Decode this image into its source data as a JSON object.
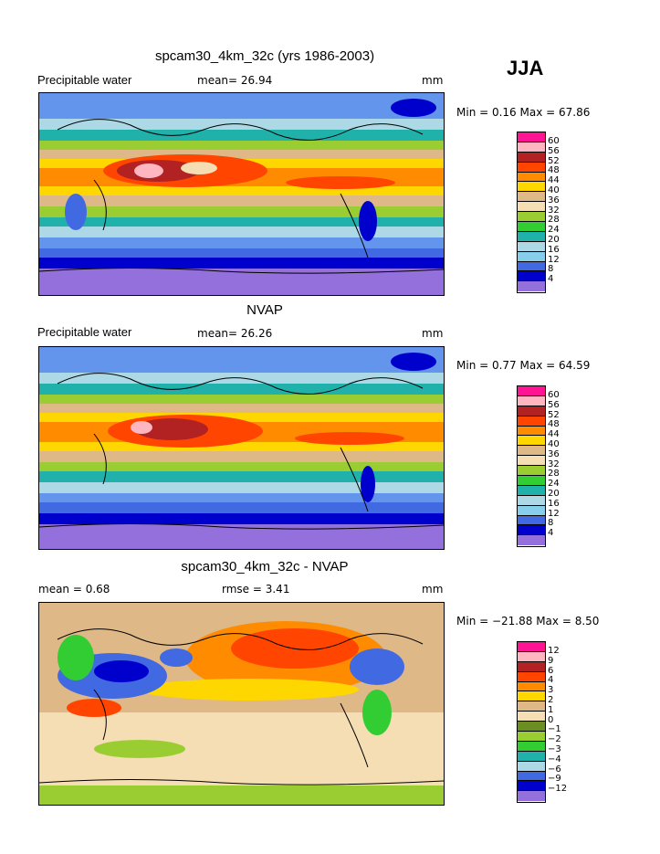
{
  "season": "JJA",
  "panels": [
    {
      "title": "spcam30_4km_32c (yrs 1986-2003)",
      "left_label": "Precipitable water",
      "mid_label": "mean=  26.94",
      "unit": "mm",
      "minmax": "Min =   0.16 Max =  67.86",
      "colorbar": {
        "colors": [
          "#ff1493",
          "#ffb6c1",
          "#b22222",
          "#ff4500",
          "#ff8c00",
          "#ffd700",
          "#deb887",
          "#f5deb3",
          "#9acd32",
          "#32cd32",
          "#20b2aa",
          "#add8e6",
          "#87ceeb",
          "#4169e1",
          "#0000cd",
          "#9370db"
        ],
        "labels": [
          "60",
          "56",
          "52",
          "48",
          "44",
          "40",
          "36",
          "32",
          "28",
          "24",
          "20",
          "16",
          "12",
          "8",
          "4"
        ]
      }
    },
    {
      "title": "NVAP",
      "left_label": "Precipitable water",
      "mid_label": "mean=  26.26",
      "unit": "mm",
      "minmax": "Min =   0.77 Max =  64.59",
      "colorbar": {
        "colors": [
          "#ff1493",
          "#ffb6c1",
          "#b22222",
          "#ff4500",
          "#ff8c00",
          "#ffd700",
          "#deb887",
          "#f5deb3",
          "#9acd32",
          "#32cd32",
          "#20b2aa",
          "#add8e6",
          "#87ceeb",
          "#4169e1",
          "#0000cd",
          "#9370db"
        ],
        "labels": [
          "60",
          "56",
          "52",
          "48",
          "44",
          "40",
          "36",
          "32",
          "28",
          "24",
          "20",
          "16",
          "12",
          "8",
          "4"
        ]
      }
    },
    {
      "title": "spcam30_4km_32c - NVAP",
      "left_label": "mean =    0.68",
      "mid_label": "rmse =    3.41",
      "unit": "mm",
      "minmax": "Min = −21.88 Max =   8.50",
      "colorbar": {
        "colors": [
          "#ff1493",
          "#ffb6c1",
          "#b22222",
          "#ff4500",
          "#ff8c00",
          "#ffd700",
          "#deb887",
          "#f5deb3",
          "#6b8e23",
          "#9acd32",
          "#32cd32",
          "#20b2aa",
          "#add8e6",
          "#4169e1",
          "#0000cd",
          "#9370db"
        ],
        "labels": [
          "12",
          "9",
          "6",
          "4",
          "3",
          "2",
          "1",
          "0",
          "−1",
          "−2",
          "−3",
          "−4",
          "−6",
          "−9",
          "−12"
        ]
      }
    }
  ]
}
